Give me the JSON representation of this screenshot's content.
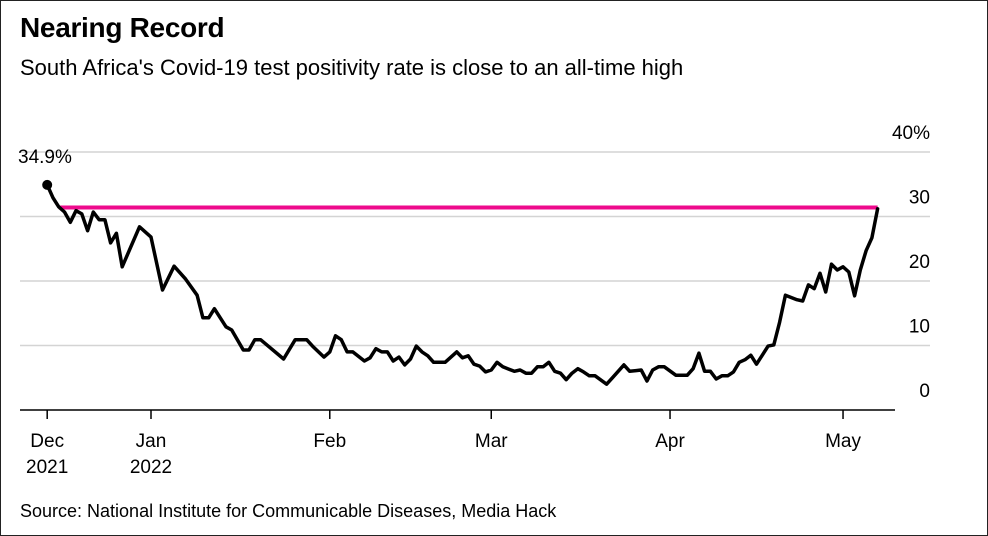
{
  "title": "Nearing Record",
  "subtitle": "South Africa's Covid-19 test positivity rate is close to an all-time high",
  "source": "Source: National Institute for Communicable Diseases, Media Hack",
  "chart_data": {
    "type": "line",
    "title": "Nearing Record",
    "subtitle": "South Africa's Covid-19 test positivity rate is close to an all-time high",
    "xlabel": "",
    "ylabel": "",
    "ylim": [
      0,
      40
    ],
    "y_ticks": [
      "0",
      "10",
      "20",
      "30",
      "40%"
    ],
    "y_tick_values": [
      0,
      10,
      20,
      30,
      40
    ],
    "y_axis_side": "right",
    "grid": true,
    "x_ticks": [
      {
        "date": "2021-12-14",
        "label": "Dec",
        "label2": "2021"
      },
      {
        "date": "2022-01-01",
        "label": "Jan",
        "label2": "2022"
      },
      {
        "date": "2022-02-01",
        "label": "Feb",
        "label2": ""
      },
      {
        "date": "2022-03-01",
        "label": "Mar",
        "label2": ""
      },
      {
        "date": "2022-04-01",
        "label": "Apr",
        "label2": ""
      },
      {
        "date": "2022-05-01",
        "label": "May",
        "label2": ""
      }
    ],
    "annotation": {
      "date": "2021-12-14",
      "value": 34.9,
      "label": "34.9%"
    },
    "reference_line": {
      "value": 31.4,
      "start": "2021-12-16",
      "end": "2022-05-07",
      "color": "#ee0a8c"
    },
    "line_color": "#000000",
    "series": [
      {
        "x": [
          "2021-12-14",
          "2021-12-15",
          "2021-12-16",
          "2021-12-17",
          "2021-12-18",
          "2021-12-19",
          "2021-12-20",
          "2021-12-21",
          "2021-12-22",
          "2021-12-23",
          "2021-12-24",
          "2021-12-25",
          "2021-12-26",
          "2021-12-27",
          "2021-12-30",
          "2022-01-01",
          "2022-01-03",
          "2022-01-05",
          "2022-01-07",
          "2022-01-09",
          "2022-01-10",
          "2022-01-11",
          "2022-01-12",
          "2022-01-14",
          "2022-01-15",
          "2022-01-17",
          "2022-01-18",
          "2022-01-19",
          "2022-01-20",
          "2022-01-24",
          "2022-01-26",
          "2022-01-28",
          "2022-01-29",
          "2022-01-31",
          "2022-02-01",
          "2022-02-02",
          "2022-02-03",
          "2022-02-04",
          "2022-02-05",
          "2022-02-07",
          "2022-02-08",
          "2022-02-09",
          "2022-02-10",
          "2022-02-11",
          "2022-02-12",
          "2022-02-13",
          "2022-02-14",
          "2022-02-15",
          "2022-02-16",
          "2022-02-17",
          "2022-02-18",
          "2022-02-19",
          "2022-02-20",
          "2022-02-21",
          "2022-02-23",
          "2022-02-24",
          "2022-02-25",
          "2022-02-26",
          "2022-02-27",
          "2022-02-28",
          "2022-03-01",
          "2022-03-02",
          "2022-03-03",
          "2022-03-05",
          "2022-03-06",
          "2022-03-07",
          "2022-03-08",
          "2022-03-09",
          "2022-03-10",
          "2022-03-11",
          "2022-03-12",
          "2022-03-13",
          "2022-03-14",
          "2022-03-15",
          "2022-03-16",
          "2022-03-17",
          "2022-03-18",
          "2022-03-19",
          "2022-03-21",
          "2022-03-22",
          "2022-03-24",
          "2022-03-25",
          "2022-03-27",
          "2022-03-28",
          "2022-03-29",
          "2022-03-30",
          "2022-03-31",
          "2022-04-02",
          "2022-04-04",
          "2022-04-05",
          "2022-04-06",
          "2022-04-07",
          "2022-04-08",
          "2022-04-09",
          "2022-04-10",
          "2022-04-11",
          "2022-04-12",
          "2022-04-13",
          "2022-04-14",
          "2022-04-15",
          "2022-04-16",
          "2022-04-18",
          "2022-04-19",
          "2022-04-20",
          "2022-04-21",
          "2022-04-23",
          "2022-04-24",
          "2022-04-25",
          "2022-04-26",
          "2022-04-27",
          "2022-04-28",
          "2022-04-29",
          "2022-04-30",
          "2022-05-01",
          "2022-05-02",
          "2022-05-03",
          "2022-05-04",
          "2022-05-05",
          "2022-05-06",
          "2022-05-07"
        ],
        "values": [
          34.9,
          32.9,
          31.5,
          30.7,
          29.1,
          30.9,
          30.4,
          27.8,
          30.7,
          29.5,
          29.5,
          25.9,
          27.4,
          22.2,
          28.4,
          26.8,
          18.6,
          22.3,
          20.3,
          17.8,
          14.3,
          14.3,
          15.7,
          12.9,
          12.4,
          9.3,
          9.3,
          10.9,
          10.9,
          7.9,
          10.9,
          10.9,
          9.9,
          8.2,
          9.0,
          11.5,
          10.9,
          9.0,
          9.0,
          7.6,
          8.1,
          9.5,
          9.0,
          9.0,
          7.6,
          8.2,
          7.0,
          7.9,
          9.9,
          9.0,
          8.4,
          7.4,
          7.4,
          7.4,
          9.0,
          8.1,
          8.4,
          7.1,
          6.8,
          5.9,
          6.2,
          7.4,
          6.7,
          6.0,
          6.2,
          5.7,
          5.7,
          6.7,
          6.7,
          7.4,
          6.0,
          5.7,
          4.7,
          5.7,
          6.4,
          5.9,
          5.3,
          5.3,
          4.0,
          5.0,
          7.0,
          6.0,
          6.2,
          4.5,
          6.2,
          6.7,
          6.7,
          5.4,
          5.4,
          6.4,
          8.8,
          6.0,
          6.0,
          4.8,
          5.3,
          5.3,
          5.9,
          7.4,
          7.8,
          8.5,
          7.1,
          9.9,
          10.1,
          13.6,
          17.8,
          17.1,
          16.9,
          19.4,
          18.8,
          21.2,
          18.3,
          22.6,
          21.7,
          22.2,
          21.4,
          17.7,
          21.7,
          24.7,
          26.7,
          31.2
        ]
      }
    ]
  }
}
